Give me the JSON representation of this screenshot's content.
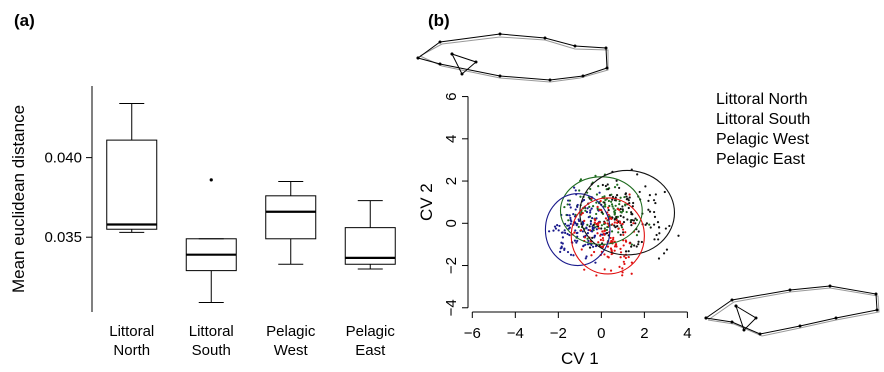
{
  "chart_data": [
    {
      "panel": "(a)",
      "type": "box",
      "ylabel": "Mean euclidean distance",
      "yticks": [
        0.035,
        0.04
      ],
      "ytick_labels": [
        "0.035",
        "0.040"
      ],
      "categories": [
        {
          "line1": "Littoral",
          "line2": "North"
        },
        {
          "line1": "Littoral",
          "line2": "South"
        },
        {
          "line1": "Pelagic",
          "line2": "West"
        },
        {
          "line1": "Pelagic",
          "line2": "East"
        }
      ],
      "boxes": [
        {
          "whisker_low": 0.0353,
          "q1": 0.0355,
          "median": 0.0358,
          "q3": 0.0411,
          "whisker_high": 0.0434,
          "outliers": []
        },
        {
          "whisker_low": 0.0309,
          "q1": 0.0329,
          "median": 0.0339,
          "q3": 0.0349,
          "whisker_high": 0.0349,
          "outliers": [
            0.0386
          ]
        },
        {
          "whisker_low": 0.0333,
          "q1": 0.0349,
          "median": 0.0366,
          "q3": 0.0376,
          "whisker_high": 0.0385,
          "outliers": []
        },
        {
          "whisker_low": 0.033,
          "q1": 0.0333,
          "median": 0.0337,
          "q3": 0.0356,
          "whisker_high": 0.0373,
          "outliers": []
        }
      ],
      "ylim": [
        0.0303,
        0.0445
      ]
    },
    {
      "panel": "(b)",
      "type": "scatter",
      "xlabel": "CV 1",
      "ylabel": "CV 2",
      "xticks": [
        -6,
        -4,
        -2,
        0,
        2,
        4
      ],
      "xtick_labels": [
        "−6",
        "−4",
        "−2",
        "0",
        "2",
        "4"
      ],
      "yticks": [
        -4,
        -2,
        0,
        2,
        4,
        6
      ],
      "ytick_labels": [
        "−4",
        "−2",
        "0",
        "2",
        "4",
        "6"
      ],
      "xlim": [
        -6.2,
        4.4
      ],
      "ylim": [
        -4.2,
        6.5
      ],
      "legend": {
        "placement": "top-right"
      },
      "series": [
        {
          "name": "Littoral North",
          "color": "#1e6b1e",
          "center": [
            0.0,
            0.6
          ],
          "radius": [
            1.9,
            1.6
          ]
        },
        {
          "name": "Littoral South",
          "color": "#1a1a8c",
          "center": [
            -1.1,
            -0.3
          ],
          "radius": [
            1.5,
            1.7
          ]
        },
        {
          "name": "Pelagic West",
          "color": "#111111",
          "center": [
            1.2,
            0.5
          ],
          "radius": [
            2.2,
            2.0
          ]
        },
        {
          "name": "Pelagic East",
          "color": "#e01010",
          "center": [
            0.3,
            -0.6
          ],
          "radius": [
            1.7,
            1.8
          ]
        }
      ]
    }
  ]
}
